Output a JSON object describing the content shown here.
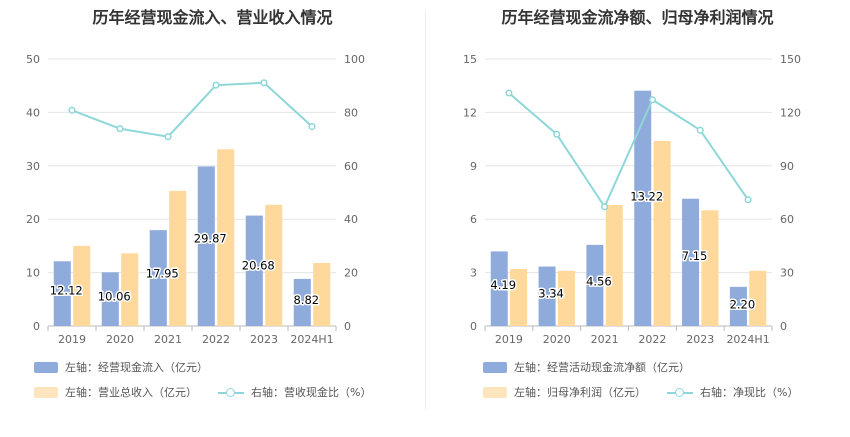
{
  "colors": {
    "bar1": "#8eabdc",
    "bar2": "#ffd89b",
    "line": "#8dd7d9",
    "grid": "#e5e5e5",
    "axis": "#bbbbbb"
  },
  "chart_data": [
    {
      "type": "bar",
      "title": "历年经营现金流入、营业收入情况",
      "categories": [
        "2019",
        "2020",
        "2021",
        "2022",
        "2023",
        "2024H1"
      ],
      "y_left": {
        "range": [
          0,
          50
        ],
        "ticks": [
          "0",
          "10",
          "20",
          "30",
          "40",
          "50"
        ]
      },
      "y_right": {
        "range": [
          0,
          100
        ],
        "ticks": [
          "0",
          "20",
          "40",
          "60",
          "80",
          "100"
        ]
      },
      "series": [
        {
          "name": "左轴：经营现金流入（亿元）",
          "axis": "left",
          "type": "bar",
          "values": [
            12.12,
            10.06,
            17.95,
            29.87,
            20.68,
            8.82
          ],
          "labels": [
            "12.12",
            "10.06",
            "17.95",
            "29.87",
            "20.68",
            "8.82"
          ]
        },
        {
          "name": "左轴：营业总收入（亿元）",
          "axis": "left",
          "type": "bar",
          "values": [
            15.0,
            13.6,
            25.3,
            33.1,
            22.7,
            11.8
          ]
        },
        {
          "name": "右轴：营收现金比（%）",
          "axis": "right",
          "type": "line",
          "values": [
            80.8,
            73.9,
            70.9,
            90.2,
            91.1,
            74.7
          ]
        }
      ]
    },
    {
      "type": "bar",
      "title": "历年经营现金流净额、归母净利润情况",
      "categories": [
        "2019",
        "2020",
        "2021",
        "2022",
        "2023",
        "2024H1"
      ],
      "y_left": {
        "range": [
          0,
          15
        ],
        "ticks": [
          "0",
          "3",
          "6",
          "9",
          "12",
          "15"
        ]
      },
      "y_right": {
        "range": [
          0,
          150
        ],
        "ticks": [
          "0",
          "30",
          "60",
          "90",
          "120",
          "150"
        ]
      },
      "series": [
        {
          "name": "左轴：经营活动现金流净额（亿元）",
          "axis": "left",
          "type": "bar",
          "values": [
            4.19,
            3.34,
            4.56,
            13.22,
            7.15,
            2.2
          ],
          "labels": [
            "4.19",
            "3.34",
            "4.56",
            "13.22",
            "7.15",
            "2.20"
          ]
        },
        {
          "name": "左轴：归母净利润（亿元）",
          "axis": "left",
          "type": "bar",
          "values": [
            3.2,
            3.1,
            6.8,
            10.4,
            6.5,
            3.1
          ]
        },
        {
          "name": "右轴：净现比（%）",
          "axis": "right",
          "type": "line",
          "values": [
            130.9,
            107.7,
            67.0,
            127.1,
            110.0,
            70.9
          ]
        }
      ]
    }
  ]
}
